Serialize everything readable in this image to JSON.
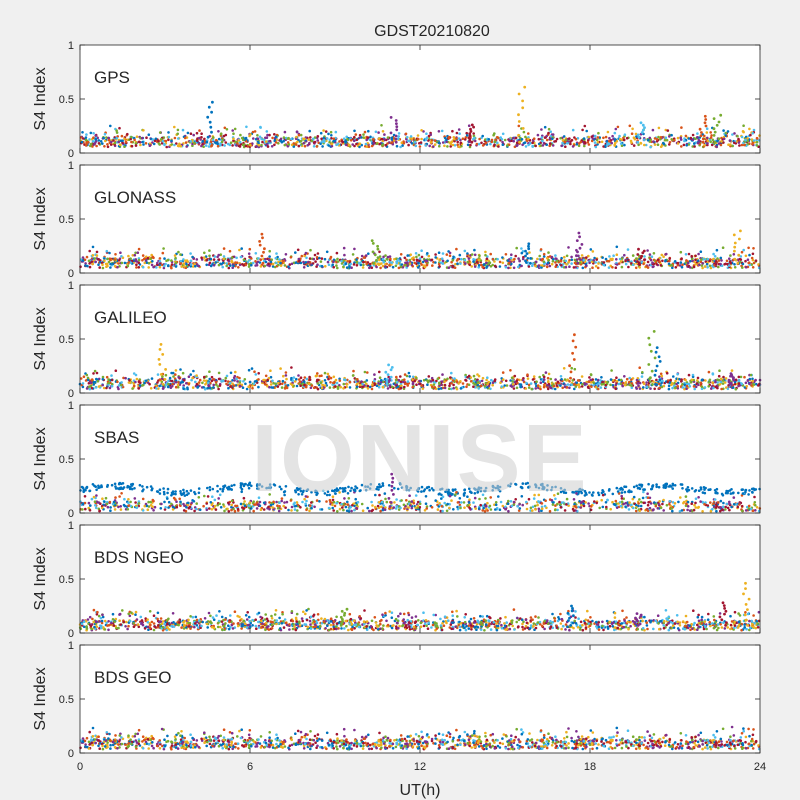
{
  "chart_data": {
    "type": "scatter",
    "title": "GDST20210820",
    "xlabel": "UT(h)",
    "ylabel": "S4 Index",
    "xlim": [
      0,
      24
    ],
    "ylim": [
      0,
      1
    ],
    "x_ticks": [
      "0",
      "6",
      "12",
      "18",
      "24"
    ],
    "y_ticks": [
      "0",
      "0.5",
      "1"
    ],
    "watermark": "IONISE",
    "grid": false,
    "marker_colors": [
      "#0072BD",
      "#D95319",
      "#EDB120",
      "#7E2F8E",
      "#77AC30",
      "#4DBEEE",
      "#A2142F"
    ],
    "panels": [
      {
        "name": "GPS",
        "baseline": 0.1,
        "spikes": [
          [
            4.6,
            0.47
          ],
          [
            11.1,
            0.33
          ],
          [
            13.8,
            0.26
          ],
          [
            15.6,
            0.61
          ],
          [
            19.8,
            0.28
          ],
          [
            22.0,
            0.34
          ],
          [
            22.5,
            0.35
          ]
        ]
      },
      {
        "name": "GLONASS",
        "baseline": 0.09,
        "spikes": [
          [
            6.4,
            0.36
          ],
          [
            10.4,
            0.3
          ],
          [
            15.8,
            0.27
          ],
          [
            17.6,
            0.37
          ],
          [
            19.8,
            0.22
          ],
          [
            23.2,
            0.39
          ]
        ]
      },
      {
        "name": "GALILEO",
        "baseline": 0.08,
        "spikes": [
          [
            2.9,
            0.45
          ],
          [
            10.9,
            0.26
          ],
          [
            17.4,
            0.54
          ],
          [
            20.2,
            0.57
          ],
          [
            20.4,
            0.42
          ],
          [
            23.0,
            0.18
          ]
        ]
      },
      {
        "name": "SBAS",
        "baseline": 0.06,
        "upper_band": 0.22,
        "spikes": [
          [
            11.0,
            0.36
          ]
        ]
      },
      {
        "name": "BDS NGEO",
        "baseline": 0.07,
        "spikes": [
          [
            9.3,
            0.22
          ],
          [
            17.3,
            0.25
          ],
          [
            19.7,
            0.18
          ],
          [
            22.7,
            0.28
          ],
          [
            23.5,
            0.46
          ]
        ]
      },
      {
        "name": "BDS GEO",
        "baseline": 0.08,
        "spikes": []
      }
    ]
  }
}
